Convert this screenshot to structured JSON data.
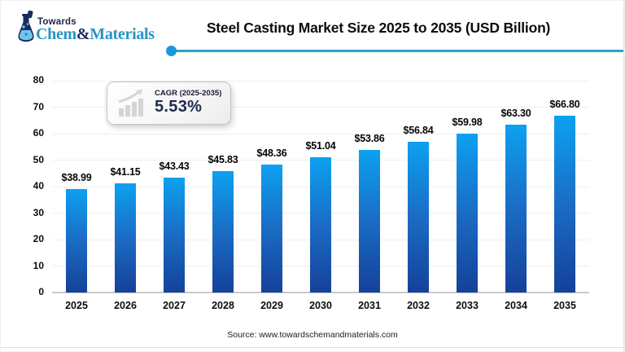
{
  "brand": {
    "name_top": "Towards",
    "name_chem": "Chem",
    "name_amp": "&",
    "name_materials": "Materials",
    "colors": {
      "navy": "#1b2a5e",
      "teal": "#2a94c4",
      "flask_liquid": "#6ec6ea"
    }
  },
  "header": {
    "title": "Steel Casting Market Size 2025 to 2035 (USD Billion)",
    "underline_color": "#2ba3c6",
    "dot_color": "#1b97d8"
  },
  "cagr_badge": {
    "label": "CAGR (2025-2035)",
    "value": "5.53%",
    "icon": "growth-trend-icon",
    "value_color": "#1e2b52"
  },
  "chart_data": {
    "type": "bar",
    "title": "Steel Casting Market Size 2025 to 2035 (USD Billion)",
    "unit": "USD Billion",
    "categories": [
      "2025",
      "2026",
      "2027",
      "2028",
      "2029",
      "2030",
      "2031",
      "2032",
      "2033",
      "2034",
      "2035"
    ],
    "values": [
      38.99,
      41.15,
      43.43,
      45.83,
      48.36,
      51.04,
      53.86,
      56.84,
      59.98,
      63.3,
      66.8
    ],
    "value_labels": [
      "$38.99",
      "$41.15",
      "$43.43",
      "$45.83",
      "$48.36",
      "$51.04",
      "$53.86",
      "$56.84",
      "$59.98",
      "$63.30",
      "$66.80"
    ],
    "ylim": [
      0,
      80
    ],
    "ytick_step": 10,
    "grid": true,
    "legend_position": "none",
    "bar_gradient": [
      "#0da1f0",
      "#1a6cc4",
      "#15419a"
    ],
    "grid_color": "#efefef",
    "axis_line_color": "#c8c8c8"
  },
  "footer": {
    "source": "Source: www.towardschemandmaterials.com"
  }
}
